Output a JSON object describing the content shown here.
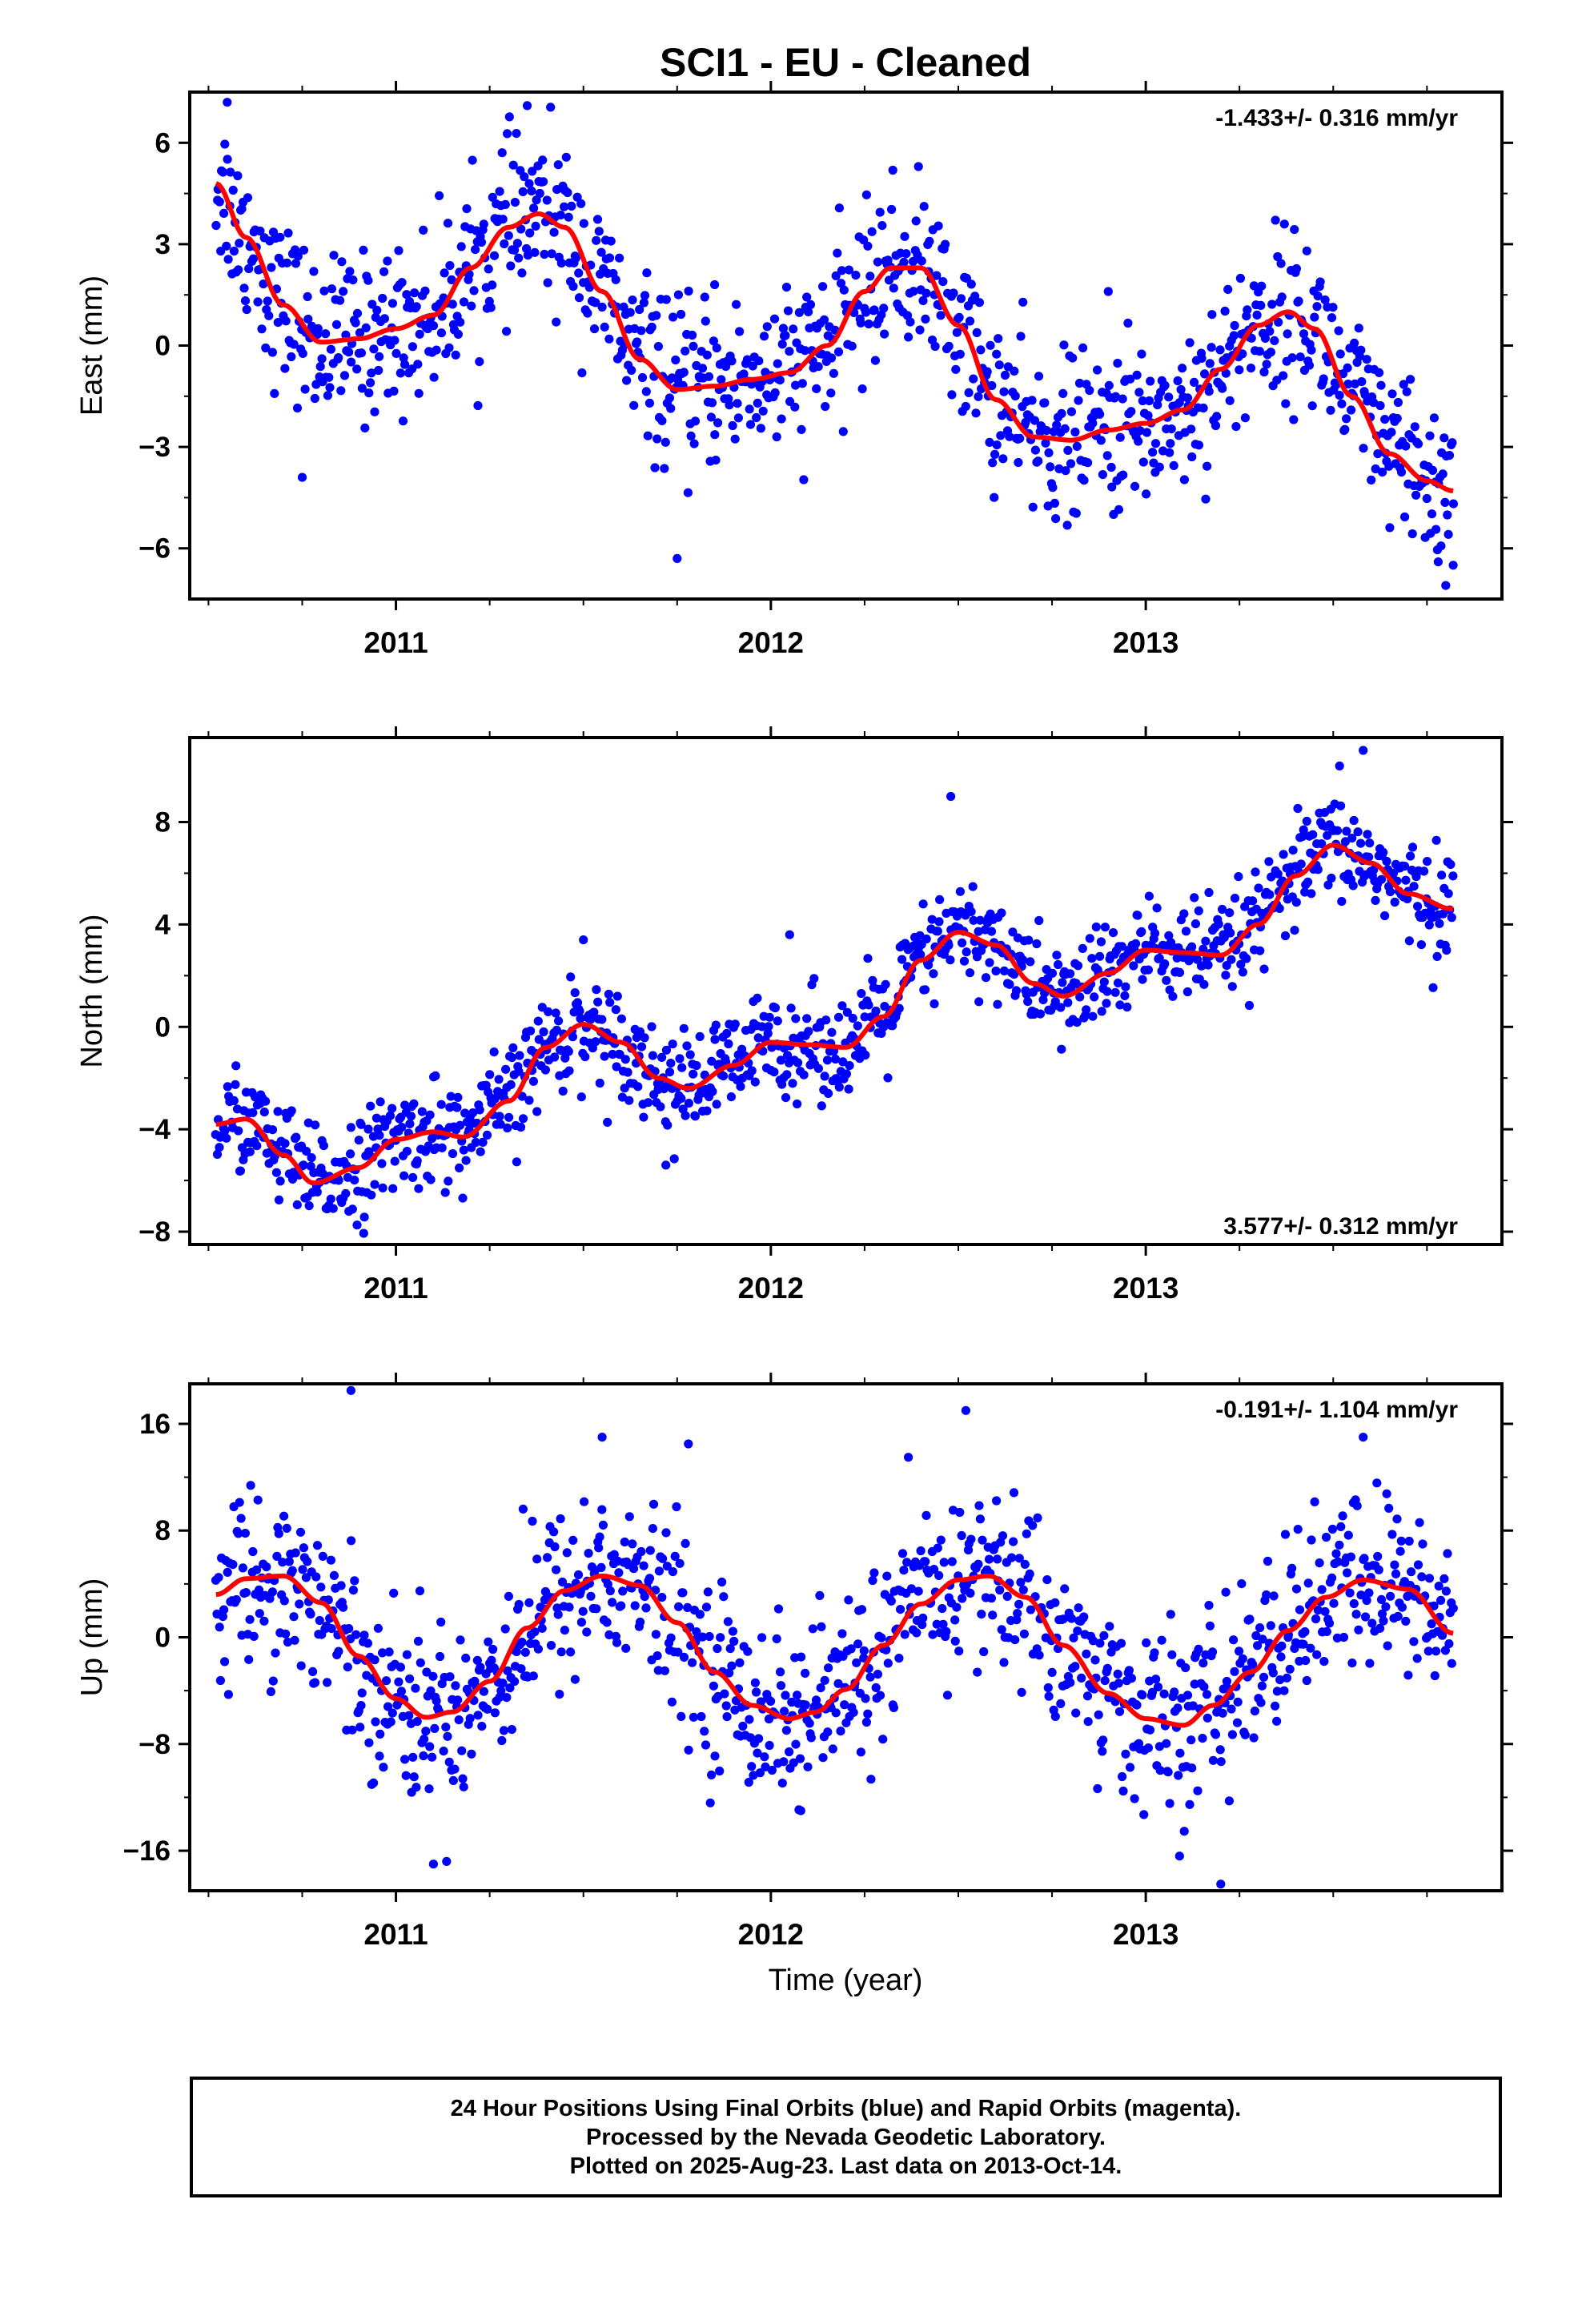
{
  "title": "SCI1  - EU - Cleaned",
  "colors": {
    "points": "#0000ff",
    "fit": "#ff0000",
    "frame": "#000000"
  },
  "chart_data": [
    {
      "type": "scatter",
      "ylabel": "East (mm)",
      "rate_label": "-1.433+/- 0.316 mm/yr",
      "xlim": [
        2010.45,
        2013.95
      ],
      "ylim": [
        -7.5,
        7.5
      ],
      "yticks": [
        -6,
        -3,
        0,
        3,
        6
      ],
      "ytick_labels": [
        "−6",
        "−3",
        "0",
        "3",
        "6"
      ],
      "xticks": [
        2011,
        2012,
        2013
      ],
      "xtick_labels": [
        "2011",
        "2012",
        "2013"
      ],
      "legend": "none",
      "fit_line": {
        "x": [
          2010.52,
          2010.6,
          2010.7,
          2010.8,
          2010.9,
          2011.0,
          2011.1,
          2011.2,
          2011.3,
          2011.38,
          2011.45,
          2011.55,
          2011.65,
          2011.75,
          2011.85,
          2011.95,
          2012.05,
          2012.15,
          2012.25,
          2012.32,
          2012.4,
          2012.5,
          2012.6,
          2012.7,
          2012.8,
          2012.9,
          2013.0,
          2013.1,
          2013.2,
          2013.3,
          2013.38,
          2013.45,
          2013.55,
          2013.65,
          2013.75,
          2013.82
        ],
        "y": [
          4.8,
          3.2,
          1.2,
          0.1,
          0.2,
          0.5,
          0.9,
          2.3,
          3.5,
          3.9,
          3.5,
          1.6,
          -0.4,
          -1.3,
          -1.2,
          -1.0,
          -0.8,
          0.0,
          1.6,
          2.3,
          2.3,
          0.6,
          -1.6,
          -2.7,
          -2.8,
          -2.5,
          -2.3,
          -1.9,
          -0.7,
          0.6,
          1.0,
          0.5,
          -1.5,
          -3.2,
          -4.0,
          -4.3
        ]
      },
      "points": {
        "start": 2010.52,
        "end": 2013.82,
        "count": 1100,
        "noise": 1.2,
        "outliers": [
          [
            2010.55,
            7.2
          ],
          [
            2011.35,
            7.1
          ],
          [
            2011.75,
            -6.3
          ],
          [
            2013.8,
            -7.1
          ],
          [
            2013.78,
            -6.4
          ],
          [
            2013.82,
            -6.5
          ],
          [
            2010.75,
            -3.9
          ],
          [
            2012.9,
            1.6
          ],
          [
            2011.85,
            1.8
          ]
        ]
      }
    },
    {
      "type": "scatter",
      "ylabel": "North (mm)",
      "rate_label": "3.577+/- 0.312 mm/yr",
      "xlim": [
        2010.45,
        2013.95
      ],
      "ylim": [
        -8.5,
        11.3
      ],
      "yticks": [
        -8,
        -4,
        0,
        4,
        8
      ],
      "ytick_labels": [
        "−8",
        "−4",
        "0",
        "4",
        "8"
      ],
      "xticks": [
        2011,
        2012,
        2013
      ],
      "xtick_labels": [
        "2011",
        "2012",
        "2013"
      ],
      "legend": "none",
      "fit_line": {
        "x": [
          2010.52,
          2010.6,
          2010.7,
          2010.78,
          2010.9,
          2011.0,
          2011.1,
          2011.18,
          2011.3,
          2011.4,
          2011.5,
          2011.6,
          2011.7,
          2011.78,
          2011.9,
          2012.0,
          2012.1,
          2012.2,
          2012.3,
          2012.4,
          2012.5,
          2012.6,
          2012.7,
          2012.78,
          2012.9,
          2013.0,
          2013.1,
          2013.2,
          2013.3,
          2013.4,
          2013.5,
          2013.6,
          2013.7,
          2013.82
        ],
        "y": [
          -3.8,
          -3.6,
          -5.0,
          -6.1,
          -5.5,
          -4.4,
          -4.1,
          -4.3,
          -2.9,
          -0.8,
          0.1,
          -0.6,
          -2.0,
          -2.4,
          -1.5,
          -0.6,
          -0.7,
          -0.8,
          0.4,
          2.6,
          3.7,
          3.2,
          1.7,
          1.2,
          2.1,
          3.0,
          2.9,
          2.8,
          4.0,
          5.9,
          7.1,
          6.4,
          5.2,
          4.6
        ]
      },
      "points": {
        "start": 2010.52,
        "end": 2013.82,
        "count": 1100,
        "noise": 1.0,
        "outliers": [
          [
            2012.48,
            9.0
          ],
          [
            2013.58,
            10.8
          ],
          [
            2011.5,
            3.4
          ],
          [
            2011.72,
            -5.4
          ],
          [
            2012.05,
            3.6
          ]
        ]
      }
    },
    {
      "type": "scatter",
      "ylabel": "Up (mm)",
      "rate_label": "-0.191+/- 1.104 mm/yr",
      "xaxis_label": "Time (year)",
      "xlim": [
        2010.45,
        2013.95
      ],
      "ylim": [
        -19,
        19
      ],
      "yticks": [
        -16,
        -8,
        0,
        8,
        16
      ],
      "ytick_labels": [
        "−16",
        "−8",
        "0",
        "8",
        "16"
      ],
      "xticks": [
        2011,
        2012,
        2013
      ],
      "xtick_labels": [
        "2011",
        "2012",
        "2013"
      ],
      "legend": "none",
      "fit_line": {
        "x": [
          2010.52,
          2010.6,
          2010.7,
          2010.8,
          2010.9,
          2011.0,
          2011.08,
          2011.15,
          2011.25,
          2011.35,
          2011.45,
          2011.55,
          2011.65,
          2011.75,
          2011.85,
          2011.95,
          2012.05,
          2012.12,
          2012.2,
          2012.3,
          2012.4,
          2012.5,
          2012.58,
          2012.68,
          2012.78,
          2012.9,
          2013.0,
          2013.1,
          2013.18,
          2013.28,
          2013.38,
          2013.48,
          2013.58,
          2013.7,
          2013.82
        ],
        "y": [
          3.2,
          4.4,
          4.6,
          2.6,
          -1.4,
          -4.6,
          -6.0,
          -5.6,
          -3.3,
          0.7,
          3.5,
          4.6,
          3.9,
          1.1,
          -2.6,
          -5.1,
          -6.1,
          -5.6,
          -3.9,
          -0.6,
          2.5,
          4.3,
          4.6,
          3.0,
          -0.6,
          -4.2,
          -6.1,
          -6.6,
          -5.1,
          -2.6,
          0.5,
          3.0,
          4.3,
          3.6,
          0.3
        ]
      },
      "points": {
        "start": 2010.52,
        "end": 2013.82,
        "count": 1100,
        "noise": 3.3,
        "outliers": [
          [
            2010.88,
            18.5
          ],
          [
            2012.52,
            17.0
          ],
          [
            2013.58,
            15.0
          ],
          [
            2011.1,
            -17.0
          ],
          [
            2013.2,
            -18.5
          ],
          [
            2013.09,
            -16.4
          ],
          [
            2011.55,
            15.0
          ],
          [
            2011.78,
            14.5
          ],
          [
            2012.08,
            -13.0
          ]
        ]
      }
    }
  ],
  "footer": {
    "line1": "24 Hour Positions Using Final Orbits (blue) and Rapid Orbits (magenta).",
    "line2": "Processed by the Nevada Geodetic Laboratory.",
    "line3": "Plotted on 2025-Aug-23. Last data on 2013-Oct-14."
  }
}
